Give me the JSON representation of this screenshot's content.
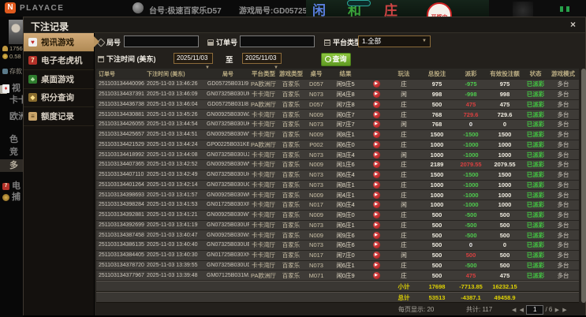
{
  "topbar": {
    "logo_n": "N",
    "logo": "PLAYACE",
    "table_label": "台号:极速百家乐D57",
    "round_label": "游戏局号:GD05725B031IA",
    "scene": {
      "player": "闲",
      "tie": "和",
      "banker": "庄",
      "status_badge": "开奖中"
    }
  },
  "left_nav": {
    "stat_points": "1756",
    "stat_balance": "0.58",
    "deposit_label": "存款",
    "items": [
      {
        "name": "live",
        "label": "视",
        "icon": "mini-cards-icon"
      },
      {
        "name": "kaka-hall",
        "label": "卡卡"
      },
      {
        "name": "europe-hall",
        "label": "欧洲"
      },
      {
        "name": "se",
        "label": "色"
      },
      {
        "name": "jing",
        "label": "竞"
      },
      {
        "name": "multi",
        "label": "多",
        "selected": true
      },
      {
        "name": "slots",
        "label": "电",
        "icon": "mini-slot-icon"
      },
      {
        "name": "fishing",
        "label": "捕",
        "icon": "mini-fish-icon"
      }
    ]
  },
  "modal": {
    "title": "下注记录",
    "close_glyph": "×",
    "sidebar": [
      {
        "name": "live-games",
        "label": "视讯游戏",
        "icon": "playing-cards-icon",
        "selected": true
      },
      {
        "name": "slot-machines",
        "label": "电子老虎机",
        "icon": "slot-machine-icon",
        "selected": false
      },
      {
        "name": "table-games",
        "label": "桌面游戏",
        "icon": "clover-icon",
        "selected": false
      },
      {
        "name": "points-query",
        "label": "积分查询",
        "icon": "gem-icon",
        "selected": false
      },
      {
        "name": "quota-records",
        "label": "额度记录",
        "icon": "document-icon",
        "selected": false
      }
    ],
    "filters": {
      "round_label": "局号",
      "round_value": "",
      "order_label": "订单号",
      "order_value": "",
      "platform_label": "平台类型",
      "platform_value": "1.全部",
      "time_label": "下注时间 (美东)",
      "date_from": "2025/11/03",
      "date_to": "2025/11/03",
      "to_label": "至",
      "search_label": "查询",
      "dropdown_arrow": "▼"
    },
    "table": {
      "headers": [
        "订单号",
        "下注时间 (美东)",
        "局号",
        "平台类型",
        "游戏类型",
        "桌号",
        "结果",
        "",
        "玩法",
        "总投注",
        "派彩",
        "有效投注额",
        "状态",
        "游戏模式"
      ],
      "play_glyph": "▶",
      "rows": [
        [
          "251103134440096",
          "2025-11-03 13:46:26",
          "GD05725B031I9",
          "PA欧洲厅",
          "百家乐",
          "D057",
          "闲9庄5",
          "庄",
          "975",
          "-975",
          "975",
          "已派彩",
          "多台"
        ],
        [
          "251103134437391",
          "2025-11-03 13:46:09",
          "GN07325B030UM",
          "卡卡湾厅",
          "百家乐",
          "N073",
          "闲4庄8",
          "闲",
          "998",
          "-998",
          "998",
          "已派彩",
          "多台"
        ],
        [
          "251103134436738",
          "2025-11-03 13:46:04",
          "GD05725B031I8",
          "PA欧洲厅",
          "百家乐",
          "D057",
          "闲7庄8",
          "庄",
          "500",
          "475",
          "475",
          "已派彩",
          "多台"
        ],
        [
          "251103134430881",
          "2025-11-03 13:45:26",
          "GN00925B030WZ",
          "卡卡湾厅",
          "百家乐",
          "N009",
          "闲0庄7",
          "庄",
          "768",
          "729.6",
          "729.6",
          "已派彩",
          "多台"
        ],
        [
          "251103134426055",
          "2025-11-03 13:44:54",
          "GN07325B030UK",
          "卡卡湾厅",
          "百家乐",
          "N073",
          "闲7庄7",
          "闲",
          "768",
          "0",
          "0",
          "已派彩",
          "多台"
        ],
        [
          "251103134425657",
          "2025-11-03 13:44:51",
          "GN00925B030WY",
          "卡卡湾厅",
          "百家乐",
          "N009",
          "闲8庄1",
          "庄",
          "1500",
          "-1500",
          "1500",
          "已派彩",
          "多台"
        ],
        [
          "251103134421529",
          "2025-11-03 13:44:24",
          "GP00225B031KE",
          "PA欧洲厅",
          "百家乐",
          "P002",
          "闲6庄0",
          "庄",
          "1000",
          "-1000",
          "1000",
          "已派彩",
          "多台"
        ],
        [
          "251103134418992",
          "2025-11-03 13:44:08",
          "GN07325B030UJ",
          "卡卡湾厅",
          "百家乐",
          "N073",
          "闲3庄4",
          "闲",
          "1000",
          "-1000",
          "1000",
          "已派彩",
          "多台"
        ],
        [
          "251103134407365",
          "2025-11-03 13:42:52",
          "GN00925B030WV",
          "卡卡湾厅",
          "百家乐",
          "N009",
          "闲1庄6",
          "庄",
          "2189",
          "2079.55",
          "2079.55",
          "已派彩",
          "多台"
        ],
        [
          "251103134407110",
          "2025-11-03 13:42:49",
          "GN07325B030UH",
          "卡卡湾厅",
          "百家乐",
          "N073",
          "闲6庄4",
          "庄",
          "1500",
          "-1500",
          "1500",
          "已派彩",
          "多台"
        ],
        [
          "251103134401264",
          "2025-11-03 13:42:14",
          "GN07325B030UG",
          "卡卡湾厅",
          "百家乐",
          "N073",
          "闲8庄1",
          "庄",
          "1000",
          "-1000",
          "1000",
          "已派彩",
          "多台"
        ],
        [
          "251103134398693",
          "2025-11-03 13:41:57",
          "GN00925B030WU",
          "卡卡湾厅",
          "百家乐",
          "N009",
          "闲4庄1",
          "庄",
          "1000",
          "-1000",
          "1000",
          "已派彩",
          "多台"
        ],
        [
          "251103134398284",
          "2025-11-03 13:41:53",
          "GN01725B030XP",
          "卡卡湾厅",
          "百家乐",
          "N017",
          "闲0庄4",
          "闲",
          "1000",
          "-1000",
          "1000",
          "已派彩",
          "多台"
        ],
        [
          "251103134392881",
          "2025-11-03 13:41:21",
          "GN00925B030WT",
          "卡卡湾厅",
          "百家乐",
          "N009",
          "闲9庄0",
          "庄",
          "500",
          "-500",
          "500",
          "已派彩",
          "多台"
        ],
        [
          "251103134392699",
          "2025-11-03 13:41:19",
          "GN07325B030UF",
          "卡卡湾厅",
          "百家乐",
          "N073",
          "闲6庄1",
          "庄",
          "500",
          "-500",
          "500",
          "已派彩",
          "多台"
        ],
        [
          "251103134387458",
          "2025-11-03 13:40:47",
          "GN00925B030WS",
          "卡卡湾厅",
          "百家乐",
          "N009",
          "闲9庄6",
          "庄",
          "500",
          "-500",
          "500",
          "已派彩",
          "多台"
        ],
        [
          "251103134386135",
          "2025-11-03 13:40:40",
          "GN07325B030UE",
          "卡卡湾厅",
          "百家乐",
          "N073",
          "闲6庄6",
          "庄",
          "500",
          "0",
          "0",
          "已派彩",
          "多台"
        ],
        [
          "251103134384405",
          "2025-11-03 13:40:30",
          "GN01725B030XN",
          "卡卡湾厅",
          "百家乐",
          "N017",
          "闲7庄0",
          "闲",
          "500",
          "500",
          "500",
          "已派彩",
          "多台"
        ],
        [
          "251103134378720",
          "2025-11-03 13:39:55",
          "GN07325B030UD",
          "卡卡湾厅",
          "百家乐",
          "N073",
          "闲6庄1",
          "庄",
          "500",
          "-500",
          "500",
          "已派彩",
          "多台"
        ],
        [
          "251103134377967",
          "2025-11-03 13:39:48",
          "GM07125B031M..",
          "PA欧洲厅",
          "百家乐",
          "M071",
          "闲0庄9",
          "庄",
          "500",
          "475",
          "475",
          "已派彩",
          "多台"
        ]
      ],
      "subtotal": {
        "label": "小计",
        "total": "17698",
        "payout": "-7713.85",
        "valid": "16232.15"
      },
      "grand_total": {
        "label": "总计",
        "total": "53513",
        "payout": "-4387.1",
        "valid": "49458.9"
      }
    },
    "footer": {
      "page_size": "每页显示: 20",
      "total_count": "共计: 117",
      "first": "◀",
      "prev": "◀",
      "page": "1",
      "of": "/ 6",
      "next": "▶",
      "last": "▶"
    }
  }
}
